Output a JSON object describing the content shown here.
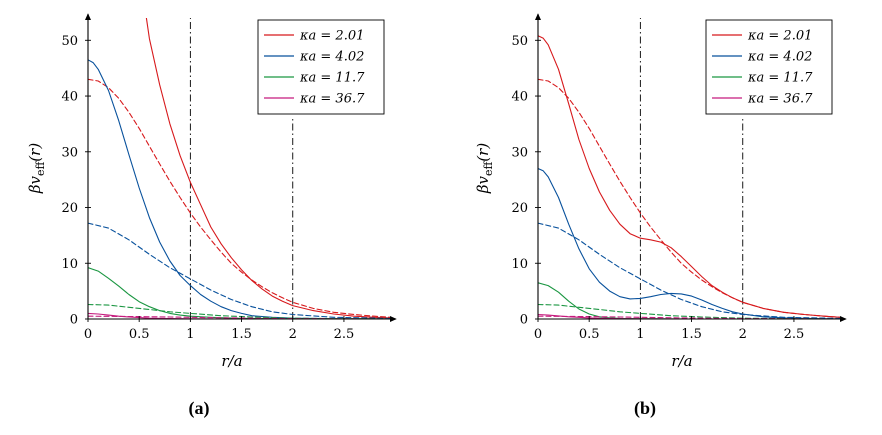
{
  "chart_data": [
    {
      "type": "line",
      "panel": "a",
      "caption": "(a)",
      "xlabel": "r/a",
      "ylabel": "βv_eff(r)",
      "ylabel_main": "βv",
      "ylabel_sub": "eff",
      "ylabel_tail": "(r)",
      "xlim": [
        0,
        2.95
      ],
      "ylim": [
        0,
        54
      ],
      "xticks": [
        0,
        0.5,
        1,
        1.5,
        2,
        2.5
      ],
      "xtick_labels": [
        "0",
        "0.5",
        "1",
        "1.5",
        "2",
        "2.5"
      ],
      "yticks": [
        0,
        10,
        20,
        30,
        40,
        50
      ],
      "ytick_labels": [
        "0",
        "10",
        "20",
        "30",
        "40",
        "50"
      ],
      "vlines": [
        {
          "x": 1,
          "style": "dashdot",
          "ymax": 54
        },
        {
          "x": 2,
          "style": "dashdot",
          "ymax": 36
        }
      ],
      "legend": [
        {
          "label": "κa = 2.01",
          "color": "#d7191c"
        },
        {
          "label": "κa = 4.02",
          "color": "#08519c"
        },
        {
          "label": "κa = 11.7",
          "color": "#1a9641"
        },
        {
          "label": "κa = 36.7",
          "color": "#c51b7d"
        }
      ],
      "series": [
        {
          "name": "κa = 2.01 (solid)",
          "color": "#d7191c",
          "style": "solid",
          "x": [
            0.57,
            0.6,
            0.7,
            0.8,
            0.9,
            1.0,
            1.1,
            1.2,
            1.3,
            1.4,
            1.5,
            1.6,
            1.7,
            1.8,
            1.9,
            2.0,
            2.2,
            2.4,
            2.6,
            2.8,
            2.95
          ],
          "y": [
            54,
            50.3,
            42.0,
            35.0,
            29.3,
            24.5,
            20.5,
            16.5,
            13.5,
            11.0,
            8.8,
            6.9,
            5.4,
            4.1,
            3.2,
            2.4,
            1.5,
            0.9,
            0.5,
            0.3,
            0.2
          ]
        },
        {
          "name": "κa = 2.01 (dashed)",
          "color": "#d7191c",
          "style": "dashed",
          "x": [
            0,
            0.1,
            0.2,
            0.3,
            0.4,
            0.5,
            0.6,
            0.7,
            0.8,
            0.9,
            1.0,
            1.1,
            1.2,
            1.3,
            1.4,
            1.5,
            1.6,
            1.7,
            1.8,
            1.9,
            2.0,
            2.2,
            2.4,
            2.6,
            2.8,
            2.95
          ],
          "y": [
            43.0,
            42.7,
            41.5,
            39.6,
            37.1,
            34.2,
            31.0,
            27.8,
            24.7,
            21.8,
            19.0,
            16.5,
            14.2,
            12.0,
            10.0,
            8.4,
            7.0,
            5.8,
            4.7,
            3.8,
            3.0,
            1.9,
            1.2,
            0.8,
            0.5,
            0.3
          ]
        },
        {
          "name": "κa = 4.02 (solid)",
          "color": "#08519c",
          "style": "solid",
          "x": [
            0,
            0.05,
            0.1,
            0.2,
            0.3,
            0.4,
            0.5,
            0.6,
            0.7,
            0.8,
            0.9,
            1.0,
            1.1,
            1.2,
            1.3,
            1.4,
            1.5,
            1.6,
            1.8,
            2.0,
            2.4,
            2.95
          ],
          "y": [
            46.5,
            46.0,
            44.8,
            41.0,
            35.6,
            29.5,
            23.5,
            18.2,
            13.8,
            10.4,
            7.8,
            6.0,
            4.4,
            3.2,
            2.2,
            1.5,
            1.0,
            0.6,
            0.3,
            0.15,
            0.05,
            0.0
          ]
        },
        {
          "name": "κa = 4.02 (dashed)",
          "color": "#08519c",
          "style": "dashed",
          "x": [
            0,
            0.2,
            0.4,
            0.6,
            0.8,
            1.0,
            1.2,
            1.4,
            1.6,
            1.8,
            2.0,
            2.4,
            2.95
          ],
          "y": [
            17.2,
            16.3,
            14.2,
            11.6,
            9.2,
            7.2,
            5.2,
            3.5,
            2.2,
            1.3,
            0.8,
            0.3,
            0.1
          ]
        },
        {
          "name": "κa = 11.7 (solid)",
          "color": "#1a9641",
          "style": "solid",
          "x": [
            0,
            0.1,
            0.2,
            0.3,
            0.4,
            0.5,
            0.6,
            0.7,
            0.8,
            0.9,
            1.0,
            1.2,
            1.5,
            2.0,
            2.95
          ],
          "y": [
            9.2,
            8.6,
            7.3,
            5.9,
            4.4,
            3.1,
            2.2,
            1.5,
            1.0,
            0.7,
            0.5,
            0.3,
            0.1,
            0.05,
            0.0
          ]
        },
        {
          "name": "κa = 11.7 (dashed)",
          "color": "#1a9641",
          "style": "dashed",
          "x": [
            0,
            0.2,
            0.4,
            0.6,
            0.8,
            1.0,
            1.3,
            1.6,
            2.0,
            2.5,
            2.95
          ],
          "y": [
            2.6,
            2.5,
            2.1,
            1.7,
            1.3,
            1.0,
            0.6,
            0.35,
            0.15,
            0.05,
            0.0
          ]
        },
        {
          "name": "κa = 36.7 (solid)",
          "color": "#c51b7d",
          "style": "solid",
          "x": [
            0,
            0.1,
            0.2,
            0.3,
            0.4,
            0.5,
            0.6,
            0.8,
            1.0,
            1.5,
            2.0,
            2.95
          ],
          "y": [
            1.0,
            0.9,
            0.7,
            0.5,
            0.35,
            0.25,
            0.15,
            0.08,
            0.04,
            0.0,
            0.0,
            0.0
          ]
        },
        {
          "name": "κa = 36.7 (dashed)",
          "color": "#c51b7d",
          "style": "dashed",
          "x": [
            0,
            0.4,
            0.8,
            1.2,
            1.6,
            2.0,
            2.5,
            2.95
          ],
          "y": [
            0.5,
            0.45,
            0.35,
            0.25,
            0.15,
            0.08,
            0.03,
            0.0
          ]
        }
      ]
    },
    {
      "type": "line",
      "panel": "b",
      "caption": "(b)",
      "xlabel": "r/a",
      "ylabel": "βv_eff(r)",
      "ylabel_main": "βv",
      "ylabel_sub": "eff",
      "ylabel_tail": "(r)",
      "xlim": [
        0,
        2.95
      ],
      "ylim": [
        0,
        54
      ],
      "xticks": [
        0,
        0.5,
        1,
        1.5,
        2,
        2.5
      ],
      "xtick_labels": [
        "0",
        "0.5",
        "1",
        "1.5",
        "2",
        "2.5"
      ],
      "yticks": [
        0,
        10,
        20,
        30,
        40,
        50
      ],
      "ytick_labels": [
        "0",
        "10",
        "20",
        "30",
        "40",
        "50"
      ],
      "vlines": [
        {
          "x": 1,
          "style": "dashdot",
          "ymax": 54
        },
        {
          "x": 2,
          "style": "dashdot",
          "ymax": 36
        }
      ],
      "legend": [
        {
          "label": "κa = 2.01",
          "color": "#d7191c"
        },
        {
          "label": "κa = 4.02",
          "color": "#08519c"
        },
        {
          "label": "κa = 11.7",
          "color": "#1a9641"
        },
        {
          "label": "κa = 36.7",
          "color": "#c51b7d"
        }
      ],
      "series": [
        {
          "name": "κa = 2.01 (solid)",
          "color": "#d7191c",
          "style": "solid",
          "x": [
            0,
            0.05,
            0.1,
            0.2,
            0.3,
            0.4,
            0.5,
            0.6,
            0.7,
            0.8,
            0.9,
            1.0,
            1.1,
            1.2,
            1.3,
            1.4,
            1.5,
            1.6,
            1.7,
            1.8,
            1.9,
            2.0,
            2.2,
            2.4,
            2.6,
            2.8,
            2.95
          ],
          "y": [
            50.8,
            50.4,
            49.2,
            44.8,
            38.6,
            32.2,
            27.0,
            22.8,
            19.5,
            17.0,
            15.3,
            14.5,
            14.2,
            13.8,
            12.8,
            11.2,
            9.4,
            7.6,
            6.0,
            4.8,
            3.8,
            3.0,
            1.9,
            1.2,
            0.8,
            0.5,
            0.3
          ]
        },
        {
          "name": "κa = 2.01 (dashed)",
          "color": "#d7191c",
          "style": "dashed",
          "x": [
            0,
            0.1,
            0.2,
            0.3,
            0.4,
            0.5,
            0.6,
            0.7,
            0.8,
            0.9,
            1.0,
            1.1,
            1.2,
            1.3,
            1.4,
            1.5,
            1.6,
            1.7,
            1.8,
            1.9,
            2.0,
            2.2,
            2.4,
            2.6,
            2.8,
            2.95
          ],
          "y": [
            43.0,
            42.7,
            41.5,
            39.6,
            37.1,
            34.2,
            31.0,
            27.8,
            24.7,
            21.8,
            19.0,
            16.5,
            14.2,
            12.0,
            10.0,
            8.4,
            7.0,
            5.8,
            4.7,
            3.8,
            3.0,
            1.9,
            1.2,
            0.8,
            0.5,
            0.3
          ]
        },
        {
          "name": "κa = 4.02 (solid)",
          "color": "#08519c",
          "style": "solid",
          "x": [
            0,
            0.05,
            0.1,
            0.2,
            0.3,
            0.4,
            0.5,
            0.6,
            0.7,
            0.8,
            0.9,
            1.0,
            1.1,
            1.2,
            1.3,
            1.4,
            1.5,
            1.6,
            1.7,
            1.8,
            1.9,
            2.0,
            2.2,
            2.4,
            2.95
          ],
          "y": [
            27.0,
            26.6,
            25.5,
            21.8,
            17.0,
            12.6,
            9.0,
            6.6,
            5.0,
            4.0,
            3.6,
            3.7,
            4.0,
            4.4,
            4.6,
            4.5,
            4.1,
            3.4,
            2.6,
            1.9,
            1.3,
            0.9,
            0.4,
            0.2,
            0.0
          ]
        },
        {
          "name": "κa = 4.02 (dashed)",
          "color": "#08519c",
          "style": "dashed",
          "x": [
            0,
            0.2,
            0.4,
            0.6,
            0.8,
            1.0,
            1.2,
            1.4,
            1.6,
            1.8,
            2.0,
            2.4,
            2.95
          ],
          "y": [
            17.2,
            16.3,
            14.2,
            11.6,
            9.2,
            7.2,
            5.2,
            3.5,
            2.2,
            1.3,
            0.8,
            0.3,
            0.1
          ]
        },
        {
          "name": "κa = 11.7 (solid)",
          "color": "#1a9641",
          "style": "solid",
          "x": [
            0,
            0.1,
            0.2,
            0.3,
            0.4,
            0.5,
            0.6,
            0.7,
            0.8,
            1.0,
            1.5,
            2.0,
            2.95
          ],
          "y": [
            6.5,
            6.0,
            4.8,
            3.2,
            1.8,
            0.9,
            0.4,
            0.2,
            0.1,
            0.05,
            0.0,
            0.0,
            0.0
          ]
        },
        {
          "name": "κa = 11.7 (dashed)",
          "color": "#1a9641",
          "style": "dashed",
          "x": [
            0,
            0.2,
            0.4,
            0.6,
            0.8,
            1.0,
            1.3,
            1.6,
            2.0,
            2.5,
            2.95
          ],
          "y": [
            2.6,
            2.5,
            2.1,
            1.7,
            1.3,
            1.0,
            0.6,
            0.35,
            0.15,
            0.05,
            0.0
          ]
        },
        {
          "name": "κa = 36.7 (solid)",
          "color": "#c51b7d",
          "style": "solid",
          "x": [
            0,
            0.1,
            0.2,
            0.3,
            0.4,
            0.5,
            0.6,
            0.8,
            1.0,
            1.5,
            2.0,
            2.95
          ],
          "y": [
            0.8,
            0.7,
            0.55,
            0.4,
            0.3,
            0.2,
            0.12,
            0.06,
            0.03,
            0.0,
            0.0,
            0.0
          ]
        },
        {
          "name": "κa = 36.7 (dashed)",
          "color": "#c51b7d",
          "style": "dashed",
          "x": [
            0,
            0.4,
            0.8,
            1.2,
            1.6,
            2.0,
            2.5,
            2.95
          ],
          "y": [
            0.5,
            0.45,
            0.35,
            0.25,
            0.15,
            0.08,
            0.03,
            0.0
          ]
        }
      ]
    }
  ]
}
